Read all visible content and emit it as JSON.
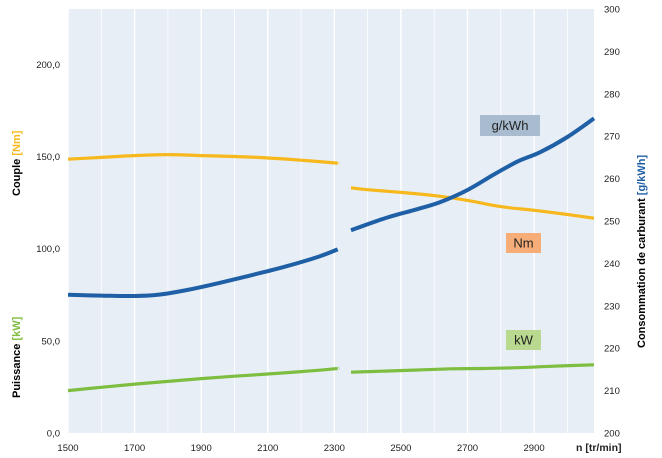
{
  "chart_data": {
    "type": "line",
    "x_unit_label": "n [tr/min]",
    "x_ticks": [
      "1500",
      "1700",
      "1900",
      "2100",
      "2300",
      "2500",
      "2700",
      "2900"
    ],
    "xlim": [
      1500,
      3080
    ],
    "left_axis": {
      "ylim": [
        0,
        230
      ],
      "ticks": [
        "0,0",
        "50,0",
        "100,0",
        "150,0",
        "200,0"
      ],
      "tick_values": [
        0,
        50,
        100,
        150,
        200
      ],
      "label_couple": "Couple ",
      "label_couple_unit": "[Nm]",
      "label_puissance": "Puissance ",
      "label_puissance_unit": "[kW]"
    },
    "right_axis": {
      "ylim": [
        200,
        300
      ],
      "ticks": [
        "200",
        "210",
        "220",
        "230",
        "240",
        "250",
        "260",
        "270",
        "280",
        "290",
        "300"
      ],
      "tick_values": [
        200,
        210,
        220,
        230,
        240,
        250,
        260,
        270,
        280,
        290,
        300
      ],
      "label": "Consommation de carburant ",
      "label_unit": "[g/kWh]"
    },
    "grid": "vertical",
    "series": [
      {
        "name": "Nm",
        "axis": "left",
        "color": "#f6b81c",
        "segments": [
          [
            [
              1500,
              148.5
            ],
            [
              1600,
              149.5
            ],
            [
              1700,
              150.5
            ],
            [
              1800,
              151
            ],
            [
              1900,
              150.5
            ],
            [
              2000,
              150
            ],
            [
              2100,
              149.2
            ],
            [
              2200,
              148
            ],
            [
              2300,
              146.5
            ],
            [
              2310,
              146.2
            ]
          ],
          [
            [
              2350,
              133
            ],
            [
              2400,
              132
            ],
            [
              2500,
              130.5
            ],
            [
              2600,
              128.8
            ],
            [
              2700,
              126.2
            ],
            [
              2800,
              122.8
            ],
            [
              2900,
              120.8
            ],
            [
              3000,
              118.5
            ],
            [
              3080,
              116.5
            ]
          ]
        ]
      },
      {
        "name": "g/kWh",
        "axis": "right",
        "color": "#1e5fa6",
        "segments": [
          [
            [
              1500,
              232.6
            ],
            [
              1600,
              232.4
            ],
            [
              1700,
              232.3
            ],
            [
              1770,
              232.6
            ],
            [
              1850,
              233.6
            ],
            [
              1950,
              235.3
            ],
            [
              2050,
              237.2
            ],
            [
              2150,
              239.2
            ],
            [
              2250,
              241.5
            ],
            [
              2310,
              243.3
            ]
          ],
          [
            [
              2350,
              247.8
            ],
            [
              2450,
              250.6
            ],
            [
              2550,
              252.8
            ],
            [
              2620,
              254.5
            ],
            [
              2700,
              257.3
            ],
            [
              2780,
              261.0
            ],
            [
              2850,
              264.0
            ],
            [
              2920,
              266.3
            ],
            [
              3000,
              269.8
            ],
            [
              3080,
              274.2
            ]
          ]
        ]
      },
      {
        "name": "kW",
        "axis": "left",
        "color": "#7dbd3f",
        "segments": [
          [
            [
              1500,
              23
            ],
            [
              1600,
              24.8
            ],
            [
              1700,
              26.5
            ],
            [
              1800,
              28
            ],
            [
              1900,
              29.5
            ],
            [
              2000,
              30.8
            ],
            [
              2100,
              32
            ],
            [
              2200,
              33.3
            ],
            [
              2300,
              34.8
            ],
            [
              2310,
              35
            ]
          ],
          [
            [
              2350,
              33
            ],
            [
              2450,
              33.6
            ],
            [
              2550,
              34.2
            ],
            [
              2650,
              34.8
            ],
            [
              2750,
              35
            ],
            [
              2850,
              35.4
            ],
            [
              2950,
              36.2
            ],
            [
              3080,
              37
            ]
          ]
        ]
      }
    ],
    "legend": [
      {
        "text": "g/kWh",
        "bg": "#a9bccf"
      },
      {
        "text": "Nm",
        "bg": "#f6ad78"
      },
      {
        "text": "kW",
        "bg": "#b8d98f"
      }
    ],
    "colors": {
      "plot_bg": "#e8eef5",
      "grid": "#ffffff",
      "couple_unit": "#f6b81c",
      "puissance_unit": "#7dbd3f",
      "consommation_unit": "#1e5fa6"
    }
  }
}
